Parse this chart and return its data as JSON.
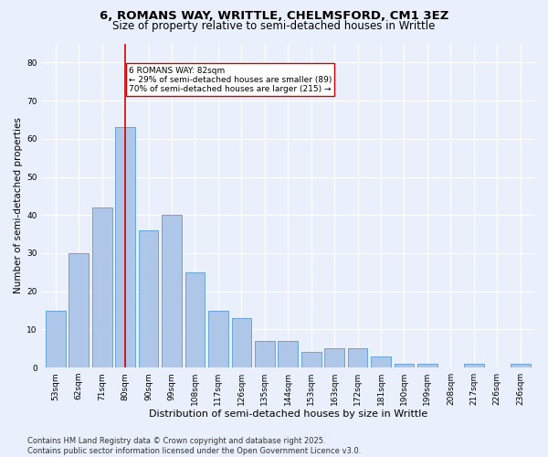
{
  "title1": "6, ROMANS WAY, WRITTLE, CHELMSFORD, CM1 3EZ",
  "title2": "Size of property relative to semi-detached houses in Writtle",
  "xlabel": "Distribution of semi-detached houses by size in Writtle",
  "ylabel": "Number of semi-detached properties",
  "categories": [
    "53sqm",
    "62sqm",
    "71sqm",
    "80sqm",
    "90sqm",
    "99sqm",
    "108sqm",
    "117sqm",
    "126sqm",
    "135sqm",
    "144sqm",
    "153sqm",
    "163sqm",
    "172sqm",
    "181sqm",
    "190sqm",
    "199sqm",
    "208sqm",
    "217sqm",
    "226sqm",
    "236sqm"
  ],
  "values": [
    15,
    30,
    42,
    63,
    36,
    40,
    25,
    15,
    13,
    7,
    7,
    4,
    5,
    5,
    3,
    1,
    1,
    0,
    1,
    0,
    1
  ],
  "bar_color": "#aec6e8",
  "bar_edge_color": "#5b9bd5",
  "property_bin_index": 3,
  "property_label": "6 ROMANS WAY: 82sqm",
  "smaller_pct": "← 29% of semi-detached houses are smaller (89)",
  "larger_pct": "70% of semi-detached houses are larger (215) →",
  "vline_color": "#cc0000",
  "annotation_box_edge": "#cc0000",
  "ylim": [
    0,
    85
  ],
  "yticks": [
    0,
    10,
    20,
    30,
    40,
    50,
    60,
    70,
    80
  ],
  "footer1": "Contains HM Land Registry data © Crown copyright and database right 2025.",
  "footer2": "Contains public sector information licensed under the Open Government Licence v3.0.",
  "bg_color": "#eaf0fb",
  "plot_bg_color": "#eaf0fb",
  "grid_color": "#ffffff",
  "title1_fontsize": 9.5,
  "title2_fontsize": 8.5,
  "xlabel_fontsize": 8,
  "ylabel_fontsize": 7.5,
  "tick_fontsize": 6.5,
  "annot_fontsize": 6.5,
  "footer_fontsize": 6
}
